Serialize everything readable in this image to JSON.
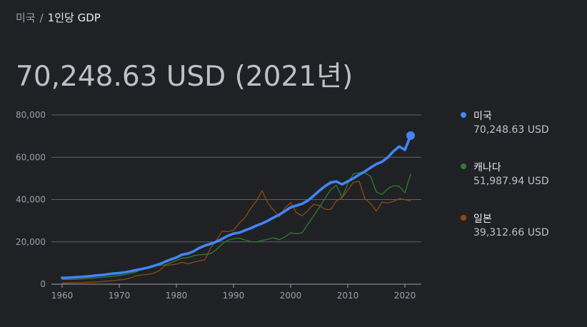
{
  "breadcrumb": {
    "parent": "미국",
    "separator": "/",
    "current": "1인당 GDP"
  },
  "headline": "70,248.63 USD (2021년)",
  "colors": {
    "background": "#202124",
    "grid": "#5f6368",
    "axis_text": "#9aa0a6",
    "us": "#4285f4",
    "canada": "#2e7d32",
    "japan": "#8d4a12"
  },
  "legend": [
    {
      "name": "미국",
      "value": "70,248.63 USD"
    },
    {
      "name": "캐나다",
      "value": "51,987.94 USD"
    },
    {
      "name": "일본",
      "value": "39,312.66 USD"
    }
  ],
  "chart_data": {
    "type": "line",
    "x": [
      1960,
      1961,
      1962,
      1963,
      1964,
      1965,
      1966,
      1967,
      1968,
      1969,
      1970,
      1971,
      1972,
      1973,
      1974,
      1975,
      1976,
      1977,
      1978,
      1979,
      1980,
      1981,
      1982,
      1983,
      1984,
      1985,
      1986,
      1987,
      1988,
      1989,
      1990,
      1991,
      1992,
      1993,
      1994,
      1995,
      1996,
      1997,
      1998,
      1999,
      2000,
      2001,
      2002,
      2003,
      2004,
      2005,
      2006,
      2007,
      2008,
      2009,
      2010,
      2011,
      2012,
      2013,
      2014,
      2015,
      2016,
      2017,
      2018,
      2019,
      2020,
      2021
    ],
    "series": [
      {
        "name": "미국",
        "color": "#4285f4",
        "values": [
          3007,
          3067,
          3244,
          3375,
          3574,
          3828,
          4146,
          4336,
          4696,
          5032,
          5234,
          5609,
          6094,
          6726,
          7226,
          7801,
          8592,
          9453,
          10565,
          11674,
          12575,
          13976,
          14434,
          15544,
          17121,
          18237,
          19071,
          20039,
          21417,
          22857,
          23889,
          24342,
          25419,
          26387,
          27695,
          28691,
          29968,
          31459,
          32854,
          34513,
          36335,
          37133,
          38023,
          39497,
          41712,
          44115,
          46299,
          48050,
          48570,
          47195,
          48651,
          50066,
          51784,
          53291,
          55124,
          56763,
          57867,
          59915,
          62805,
          65095,
          63531,
          70249
        ]
      },
      {
        "name": "캐나다",
        "color": "#2e7d32",
        "values": [
          2259,
          2241,
          2270,
          2368,
          2556,
          2770,
          3047,
          3217,
          3463,
          3764,
          4122,
          4520,
          5089,
          5838,
          7033,
          7511,
          8809,
          8920,
          9123,
          10043,
          11171,
          12337,
          12482,
          13425,
          13877,
          14114,
          14461,
          16309,
          18937,
          20716,
          21448,
          21768,
          20879,
          20121,
          19935,
          20614,
          21227,
          21903,
          21026,
          22316,
          24271,
          23822,
          24255,
          28301,
          32144,
          36268,
          40504,
          44659,
          46711,
          40876,
          47562,
          52224,
          52670,
          52635,
          50956,
          43596,
          42316,
          45129,
          46549,
          46329,
          43242,
          51988
        ]
      },
      {
        "name": "일본",
        "color": "#8d4a12",
        "values": [
          479,
          564,
          634,
          718,
          835,
          920,
          1059,
          1229,
          1451,
          1669,
          2038,
          2272,
          2967,
          3998,
          4354,
          4659,
          5197,
          6335,
          8821,
          9105,
          9463,
          10361,
          9578,
          10425,
          10984,
          11585,
          17111,
          20745,
          25052,
          24813,
          25372,
          28925,
          31465,
          35766,
          39269,
          44198,
          38437,
          35022,
          31903,
          36027,
          38532,
          33846,
          32289,
          34808,
          37689,
          37218,
          35434,
          35275,
          39339,
          40855,
          44508,
          48168,
          48603,
          40455,
          38109,
          34524,
          38762,
          38387,
          39159,
          40416,
          39987,
          39313
        ]
      }
    ],
    "ylim": [
      0,
      80000
    ],
    "yticks": [
      0,
      20000,
      40000,
      60000,
      80000
    ],
    "ytick_labels": [
      "0",
      "20,000",
      "40,000",
      "60,000",
      "80,000"
    ],
    "xticks": [
      1960,
      1970,
      1980,
      1990,
      2000,
      2010,
      2020
    ],
    "xtick_labels": [
      "1960",
      "1970",
      "1980",
      "1990",
      "2000",
      "2010",
      "2020"
    ],
    "grid": true,
    "legend_position": "right"
  }
}
